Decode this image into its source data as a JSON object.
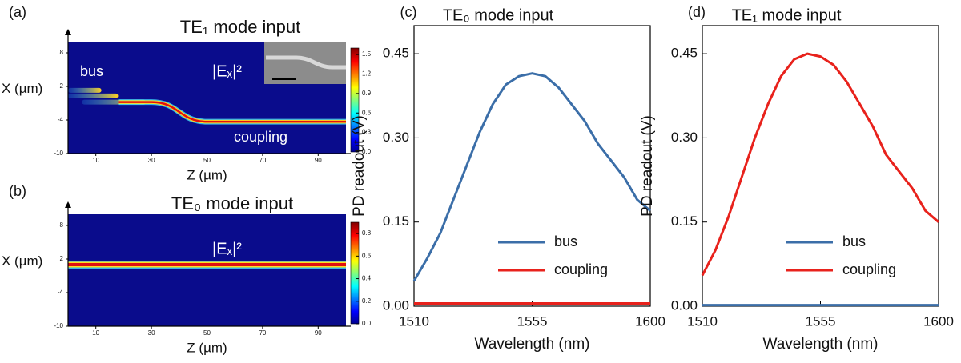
{
  "chart_data": [
    {
      "type": "heatmap",
      "panel_label": "(a)",
      "title": "TE₁ mode input",
      "field_label": "|Eₓ|²",
      "annotations": [
        "bus",
        "coupling"
      ],
      "xlabel": "Z (µm)",
      "ylabel": "X (µm)",
      "xlim": [
        0,
        100
      ],
      "xticks": [
        10,
        30,
        50,
        70,
        90
      ],
      "ylim": [
        -10,
        10
      ],
      "yticks": [
        8,
        2,
        -4,
        -10
      ],
      "clim": [
        0,
        1.6
      ],
      "cticks": [
        1.5,
        1.2,
        0.9,
        0.6,
        0.3,
        {
          "value": 0,
          "label": "0.0"
        }
      ]
    },
    {
      "type": "heatmap",
      "panel_label": "(b)",
      "title": "TE₀ mode input",
      "field_label": "|Eₓ|²",
      "xlabel": "Z (µm)",
      "ylabel": "X (µm)",
      "xlim": [
        0,
        100
      ],
      "xticks": [
        10,
        30,
        50,
        70,
        90
      ],
      "ylim": [
        -10,
        10
      ],
      "yticks": [
        8,
        2,
        -4,
        -10
      ],
      "clim": [
        0,
        0.9
      ],
      "cticks": [
        0.8,
        0.6,
        0.4,
        0.2,
        {
          "value": 0,
          "label": "0.0"
        }
      ]
    },
    {
      "type": "line",
      "panel_label": "(c)",
      "title": "TE₀ mode input",
      "xlabel": "Wavelength (nm)",
      "ylabel": "PD readout (V)",
      "x": [
        1510,
        1515,
        1520,
        1525,
        1530,
        1535,
        1540,
        1545,
        1550,
        1555,
        1560,
        1565,
        1570,
        1575,
        1580,
        1585,
        1590,
        1595,
        1600
      ],
      "xlim": [
        1510,
        1600
      ],
      "xticks": [
        1510,
        1555,
        1600
      ],
      "ylim": [
        0,
        0.5
      ],
      "yticks": [
        {
          "value": 0,
          "label": "0.00"
        },
        0.15,
        {
          "value": 0.3,
          "label": "0.30"
        },
        0.45
      ],
      "legend": "lower center",
      "series": [
        {
          "name": "bus",
          "color": "#3b6ea8",
          "values": [
            0.045,
            0.085,
            0.13,
            0.19,
            0.25,
            0.31,
            0.36,
            0.395,
            0.41,
            0.415,
            0.41,
            0.39,
            0.36,
            0.33,
            0.29,
            0.26,
            0.23,
            0.19,
            0.17
          ]
        },
        {
          "name": "coupling",
          "color": "#e8221c",
          "values": [
            0.005,
            0.005,
            0.005,
            0.005,
            0.005,
            0.005,
            0.005,
            0.005,
            0.005,
            0.005,
            0.005,
            0.005,
            0.005,
            0.005,
            0.005,
            0.005,
            0.005,
            0.005,
            0.005
          ]
        }
      ]
    },
    {
      "type": "line",
      "panel_label": "(d)",
      "title": "TE₁ mode input",
      "xlabel": "Wavelength (nm)",
      "ylabel": "PD readout (V)",
      "x": [
        1510,
        1515,
        1520,
        1525,
        1530,
        1535,
        1540,
        1545,
        1550,
        1555,
        1560,
        1565,
        1570,
        1575,
        1580,
        1585,
        1590,
        1595,
        1600
      ],
      "xlim": [
        1510,
        1600
      ],
      "xticks": [
        1510,
        1555,
        1600
      ],
      "ylim": [
        0,
        0.5
      ],
      "yticks": [
        {
          "value": 0,
          "label": "0.00"
        },
        0.15,
        {
          "value": 0.3,
          "label": "0.30"
        },
        0.45
      ],
      "legend": "lower center",
      "series": [
        {
          "name": "bus",
          "color": "#3b6ea8",
          "values": [
            0.002,
            0.002,
            0.002,
            0.002,
            0.002,
            0.002,
            0.002,
            0.002,
            0.002,
            0.002,
            0.002,
            0.002,
            0.002,
            0.002,
            0.002,
            0.002,
            0.002,
            0.002,
            0.002
          ]
        },
        {
          "name": "coupling",
          "color": "#e8221c",
          "values": [
            0.055,
            0.1,
            0.16,
            0.23,
            0.3,
            0.36,
            0.41,
            0.44,
            0.45,
            0.445,
            0.43,
            0.4,
            0.36,
            0.32,
            0.27,
            0.24,
            0.21,
            0.17,
            0.15
          ]
        }
      ]
    }
  ]
}
